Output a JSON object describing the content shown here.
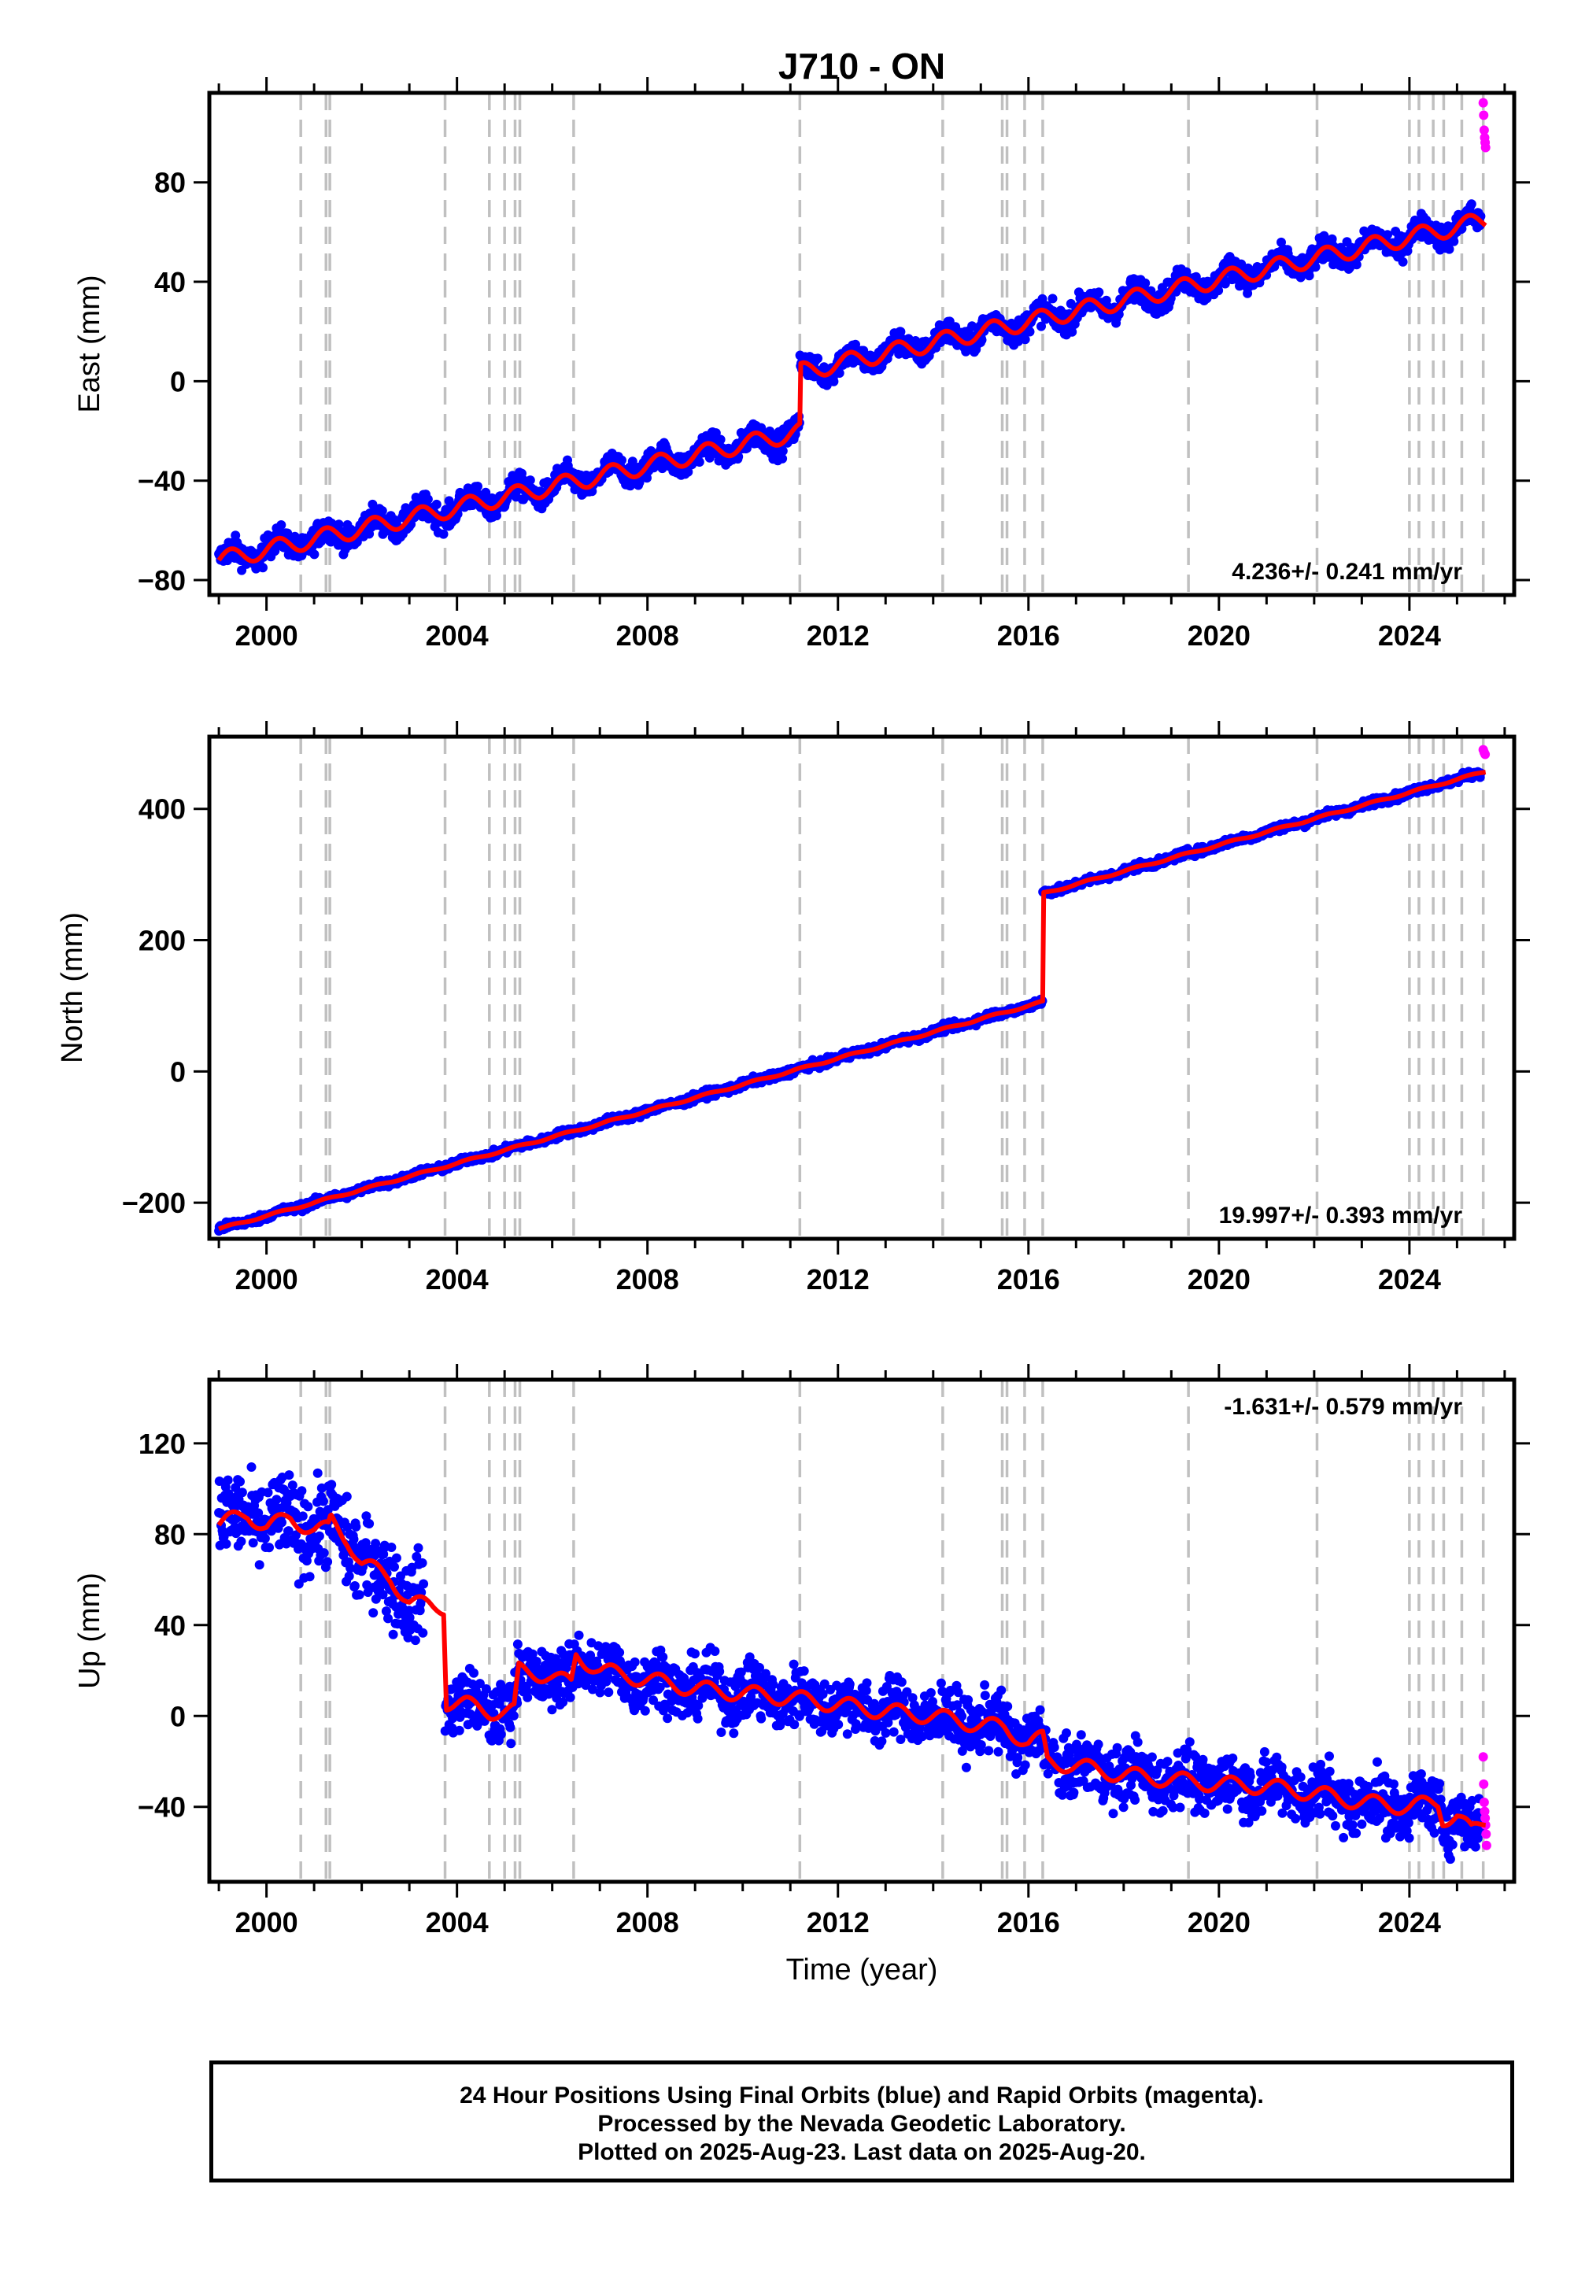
{
  "chart_data": {
    "title": "J710 - ON",
    "type": "scatter",
    "x_range": [
      1998.8,
      2026.2
    ],
    "x_ticks": [
      2000,
      2004,
      2008,
      2012,
      2016,
      2020,
      2024
    ],
    "xlabel": "Time (year)",
    "event_lines": [
      2000.72,
      2001.25,
      2001.33,
      2003.75,
      2004.68,
      2005.0,
      2005.22,
      2005.32,
      2006.45,
      2011.2,
      2014.2,
      2015.45,
      2015.55,
      2015.92,
      2016.3,
      2019.36,
      2022.06,
      2024.0,
      2024.2,
      2024.5,
      2024.72,
      2025.1,
      2025.55
    ],
    "series_colors": {
      "final_orbits": "#0000ff",
      "rapid_orbits": "#ff00ff",
      "model": "#ff0000",
      "event_lines": "#c0c0c0"
    },
    "panels": [
      {
        "id": "east",
        "ylabel": "East (mm)",
        "ylim": [
          -86,
          116
        ],
        "y_ticks": [
          -80,
          -40,
          0,
          40,
          80
        ],
        "rate_label": "4.236+/- 0.241 mm/yr",
        "rate_position": "bottom-right",
        "model": {
          "start_year": 1999.0,
          "start_value": -72,
          "trend_mm_per_yr": 4.236,
          "seasonal_amplitude_mm": 3.5,
          "offsets": [
            {
              "year": 2011.2,
              "step_mm": 24
            }
          ]
        },
        "scatter_mm": 3.5,
        "rapid_points": [
          [
            2025.55,
            112
          ],
          [
            2025.56,
            107
          ],
          [
            2025.57,
            101
          ],
          [
            2025.58,
            98
          ],
          [
            2025.59,
            96
          ],
          [
            2025.6,
            94
          ]
        ]
      },
      {
        "id": "north",
        "ylabel": "North (mm)",
        "ylim": [
          -255,
          510
        ],
        "y_ticks": [
          -200,
          0,
          200,
          400
        ],
        "rate_label": "19.997+/- 0.393 mm/yr",
        "rate_position": "bottom-right",
        "model": {
          "start_year": 1999.0,
          "start_value": -240,
          "trend_mm_per_yr": 19.997,
          "seasonal_amplitude_mm": 1.5,
          "offsets": [
            {
              "year": 2016.3,
              "step_mm": 165
            }
          ]
        },
        "scatter_mm": 4,
        "rapid_points": [
          [
            2025.55,
            490
          ],
          [
            2025.57,
            486
          ],
          [
            2025.59,
            483
          ]
        ]
      },
      {
        "id": "up",
        "ylabel": "Up (mm)",
        "ylim": [
          -73,
          148
        ],
        "y_ticks": [
          -40,
          0,
          40,
          80,
          120
        ],
        "rate_label": "-1.631+/- 0.579 mm/yr",
        "rate_position": "top-right",
        "model_knots": [
          [
            1999.0,
            84
          ],
          [
            1999.6,
            89
          ],
          [
            2000.0,
            83
          ],
          [
            2000.5,
            87
          ],
          [
            2001.0,
            82
          ],
          [
            2001.3,
            82
          ],
          [
            2001.35,
            86
          ],
          [
            2001.7,
            78
          ],
          [
            2002.0,
            67
          ],
          [
            2002.6,
            61
          ],
          [
            2003.0,
            50
          ],
          [
            2003.5,
            48
          ],
          [
            2003.72,
            48
          ],
          [
            2003.78,
            6
          ],
          [
            2004.2,
            5
          ],
          [
            2004.7,
            2
          ],
          [
            2005.2,
            2
          ],
          [
            2005.3,
            20
          ],
          [
            2005.9,
            18
          ],
          [
            2006.4,
            14
          ],
          [
            2006.5,
            27
          ],
          [
            2007.0,
            20
          ],
          [
            2008.0,
            16
          ],
          [
            2009.0,
            12
          ],
          [
            2010.0,
            10
          ],
          [
            2011.0,
            8
          ],
          [
            2012.0,
            5
          ],
          [
            2013.0,
            2
          ],
          [
            2014.0,
            0
          ],
          [
            2015.0,
            -4
          ],
          [
            2015.5,
            -5
          ],
          [
            2016.0,
            -12
          ],
          [
            2016.3,
            -10
          ],
          [
            2016.4,
            -20
          ],
          [
            2017.0,
            -22
          ],
          [
            2018.0,
            -26
          ],
          [
            2019.0,
            -28
          ],
          [
            2020.0,
            -30
          ],
          [
            2021.0,
            -31
          ],
          [
            2022.0,
            -34
          ],
          [
            2023.0,
            -38
          ],
          [
            2024.0,
            -40
          ],
          [
            2024.6,
            -38
          ],
          [
            2024.7,
            -45
          ],
          [
            2025.0,
            -44
          ],
          [
            2025.3,
            -51
          ],
          [
            2025.6,
            -46
          ]
        ],
        "seasonal_amplitude_mm": 3.5,
        "scatter_mm": 9,
        "rapid_points": [
          [
            2025.55,
            -18
          ],
          [
            2025.56,
            -30
          ],
          [
            2025.57,
            -38
          ],
          [
            2025.58,
            -42
          ],
          [
            2025.59,
            -45
          ],
          [
            2025.6,
            -48
          ],
          [
            2025.61,
            -52
          ],
          [
            2025.62,
            -57
          ]
        ]
      }
    ]
  },
  "footer": {
    "line1": "24 Hour Positions Using Final Orbits (blue) and Rapid Orbits (magenta).",
    "line2": "Processed by the Nevada Geodetic Laboratory.",
    "line3": "Plotted on 2025-Aug-23. Last data on 2025-Aug-20."
  }
}
